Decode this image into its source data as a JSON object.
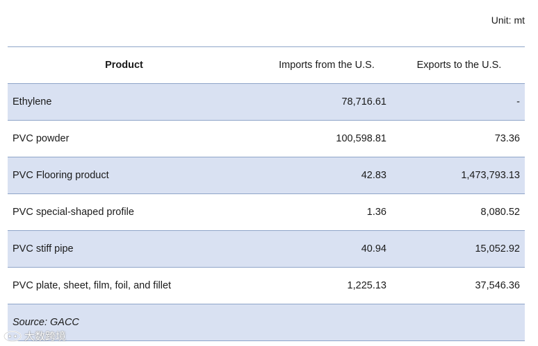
{
  "unit_label": "Unit: mt",
  "table": {
    "headers": {
      "product": "Product",
      "imports": "Imports from the U.S.",
      "exports": "Exports to the U.S."
    },
    "rows": [
      {
        "product": "Ethylene",
        "imports": "78,716.61",
        "exports": "-"
      },
      {
        "product": "PVC powder",
        "imports": "100,598.81",
        "exports": "73.36"
      },
      {
        "product": "PVC Flooring product",
        "imports": "42.83",
        "exports": "1,473,793.13"
      },
      {
        "product": "PVC special-shaped profile",
        "imports": "1.36",
        "exports": "8,080.52"
      },
      {
        "product": "PVC stiff pipe",
        "imports": "40.94",
        "exports": "15,052.92"
      },
      {
        "product": "PVC plate, sheet, film, foil, and fillet",
        "imports": "1,225.13",
        "exports": "37,546.36"
      }
    ],
    "source": "Source: GACC"
  },
  "watermark": {
    "text": "大数跨境",
    "icon": "watermark-logo-icon"
  },
  "colors": {
    "shaded_row": "#d9e1f2",
    "border": "#8ea4c8"
  }
}
